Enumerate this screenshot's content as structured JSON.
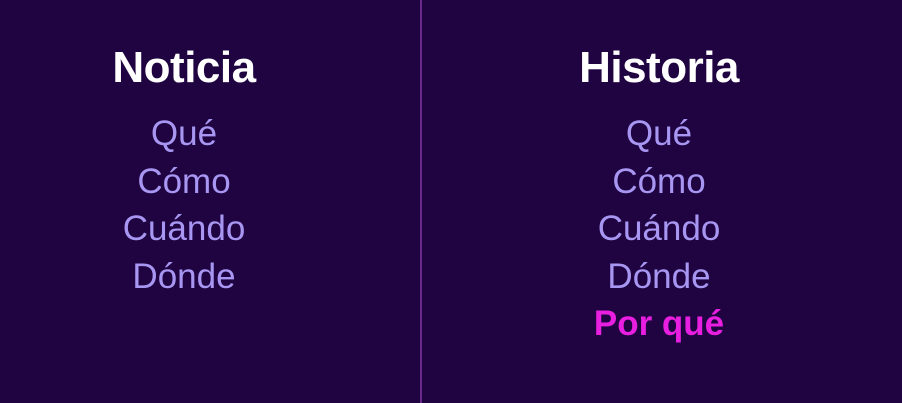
{
  "colors": {
    "background": "#200441",
    "divider": "#6a2a8c",
    "heading": "#ffffff",
    "item": "#a897f2",
    "highlight": "#e81ee0"
  },
  "left": {
    "title": "Noticia",
    "items": [
      "Qué",
      "Cómo",
      "Cuándo",
      "Dónde"
    ]
  },
  "right": {
    "title": "Historia",
    "items": [
      "Qué",
      "Cómo",
      "Cuándo",
      "Dónde"
    ],
    "highlight": "Por qué"
  }
}
